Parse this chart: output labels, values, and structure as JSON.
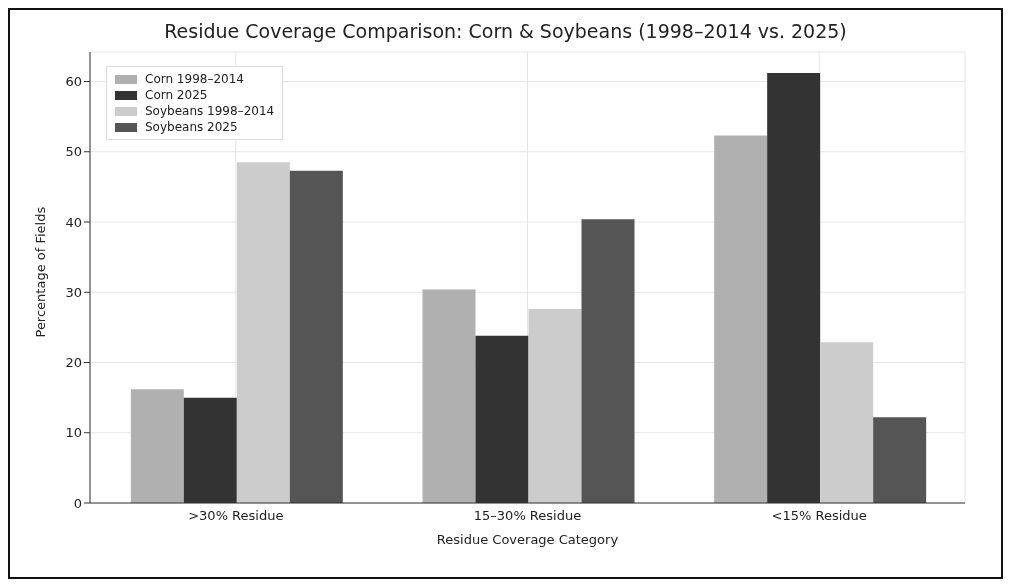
{
  "chart_data": {
    "type": "bar",
    "title": "Residue Coverage Comparison: Corn & Soybeans (1998–2014 vs. 2025)",
    "xlabel": "Residue Coverage Category",
    "ylabel": "Percentage of Fields",
    "categories": [
      ">30% Residue",
      "15–30% Residue",
      "<15% Residue"
    ],
    "series": [
      {
        "name": "Corn 1998–2014",
        "color": "#b0b0b0",
        "values": [
          16.2,
          30.4,
          52.3
        ]
      },
      {
        "name": "Corn 2025",
        "color": "#333333",
        "values": [
          15,
          23.8,
          61.2
        ]
      },
      {
        "name": "Soybeans 1998–2014",
        "color": "#cccccc",
        "values": [
          48.5,
          27.6,
          22.9
        ]
      },
      {
        "name": "Soybeans 2025",
        "color": "#555555",
        "values": [
          47.3,
          40.4,
          12.2
        ]
      }
    ],
    "ylim": [
      0,
      64.2
    ],
    "yticks": [
      0,
      10,
      20,
      30,
      40,
      50,
      60
    ],
    "grid": true,
    "legend": "top left"
  }
}
